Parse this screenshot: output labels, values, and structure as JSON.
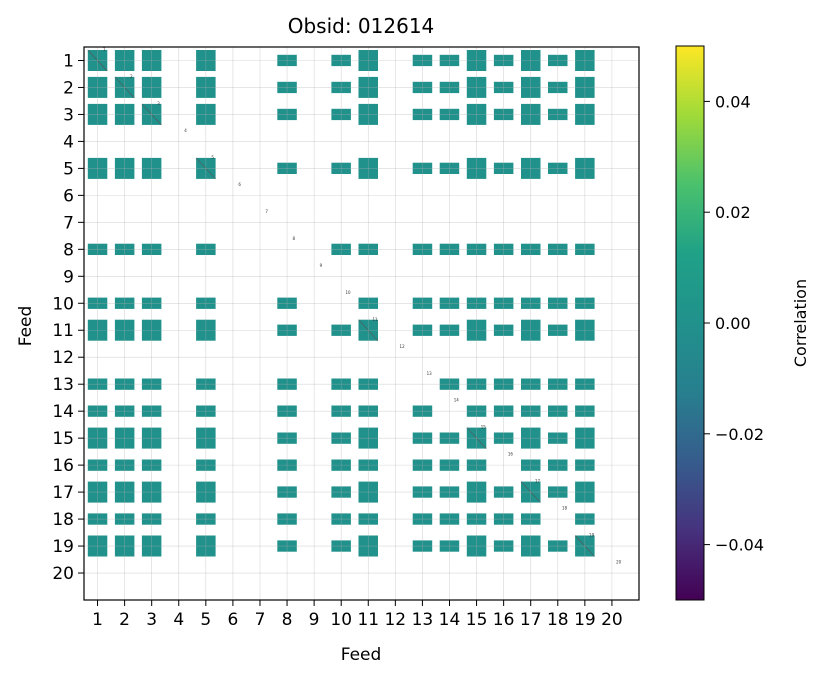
{
  "chart_data": {
    "type": "heatmap",
    "title": "Obsid: 012614",
    "xlabel": "Feed",
    "ylabel": "Feed",
    "x_ticks": [
      "1",
      "2",
      "3",
      "4",
      "5",
      "6",
      "7",
      "8",
      "9",
      "10",
      "11",
      "12",
      "13",
      "14",
      "15",
      "16",
      "17",
      "18",
      "19",
      "20"
    ],
    "y_ticks": [
      "1",
      "2",
      "3",
      "4",
      "5",
      "6",
      "7",
      "8",
      "9",
      "10",
      "11",
      "12",
      "13",
      "14",
      "15",
      "16",
      "17",
      "18",
      "19",
      "20"
    ],
    "colorbar": {
      "label": "Correlation",
      "range": [
        -0.05,
        0.05
      ],
      "ticks": [
        "−0.04",
        "−0.02",
        "0.00",
        "0.02",
        "0.04"
      ],
      "tick_values": [
        -0.04,
        -0.02,
        0.0,
        0.02,
        0.04
      ],
      "colormap": "viridis"
    },
    "grid": true,
    "cell_value": 0.0,
    "cell_color": "#21918c",
    "block_feeds": [
      1,
      2,
      3,
      5,
      8,
      10,
      11,
      13,
      14,
      15,
      16,
      17,
      18,
      19
    ],
    "block_full_feeds": [
      1,
      2,
      3,
      5,
      11,
      15,
      17,
      19
    ],
    "empty_feeds": [
      4,
      6,
      7,
      9,
      12,
      20
    ],
    "diagonal_labels": [
      "1",
      "2",
      "3",
      "4",
      "5",
      "6",
      "7",
      "8",
      "9",
      "10",
      "11",
      "12",
      "13",
      "14",
      "15",
      "16",
      "17",
      "18",
      "19",
      "20"
    ]
  }
}
